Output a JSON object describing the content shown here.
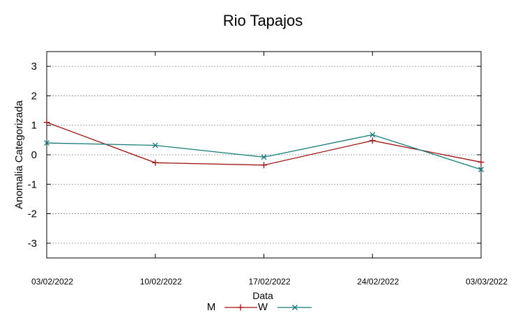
{
  "chart_data": {
    "type": "line",
    "title": "Rio Tapajos",
    "xlabel": "Data",
    "ylabel": "Anomalia Categorizada",
    "categories": [
      "03/02/2022",
      "10/02/2022",
      "17/02/2022",
      "24/02/2022",
      "03/03/2022"
    ],
    "ylim": [
      -3.5,
      3.5
    ],
    "yticks": [
      3,
      2,
      1,
      0,
      -1,
      -2,
      -3
    ],
    "ytick_labels": [
      "3",
      "2",
      "1",
      "0",
      "-1",
      "-2",
      "-3"
    ],
    "grid": true,
    "legend_position": "bottom",
    "series": [
      {
        "name": "M",
        "marker": "+",
        "color": "#a01010",
        "values": [
          1.1,
          -0.27,
          -0.35,
          0.48,
          -0.25
        ]
      },
      {
        "name": "W",
        "marker": "x",
        "color": "#117a7a",
        "values": [
          0.4,
          0.32,
          -0.08,
          0.68,
          -0.5
        ]
      }
    ]
  }
}
